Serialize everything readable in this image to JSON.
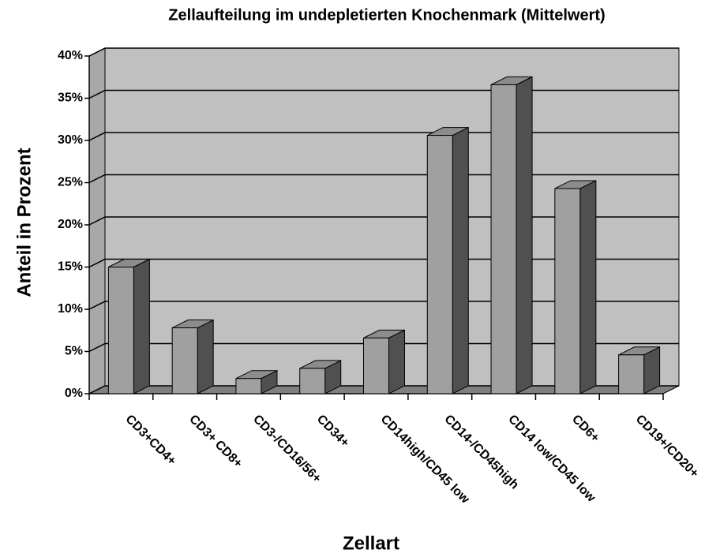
{
  "chart_data": {
    "type": "bar3d",
    "title": "Zellaufteilung im undepletierten Knochenmark (Mittelwert)",
    "x_label": "Zellart",
    "y_label": "Anteil in Prozent",
    "categories": [
      "CD3+CD4+",
      "CD3+ CD8+",
      "CD3-/CD16/56+",
      "CD34+",
      "CD14high/CD45 low",
      "CD14-/CD45high",
      "CD14 low/CD45 low",
      "CD6+",
      "CD19+/CD20+"
    ],
    "values": [
      15,
      7.8,
      1.8,
      3,
      6.6,
      30.6,
      36.6,
      24.3,
      4.6
    ],
    "color": "#a0a0a0",
    "ylim": [
      0,
      40
    ],
    "yticks": [
      {
        "value": 0,
        "label": "0%"
      },
      {
        "value": 5,
        "label": "5%"
      },
      {
        "value": 10,
        "label": "10%"
      },
      {
        "value": 15,
        "label": "15%"
      },
      {
        "value": 20,
        "label": "20%"
      },
      {
        "value": 25,
        "label": "25%"
      },
      {
        "value": 30,
        "label": "30%"
      },
      {
        "value": 35,
        "label": "35%"
      },
      {
        "value": 40,
        "label": "40%"
      }
    ],
    "grid": true
  }
}
